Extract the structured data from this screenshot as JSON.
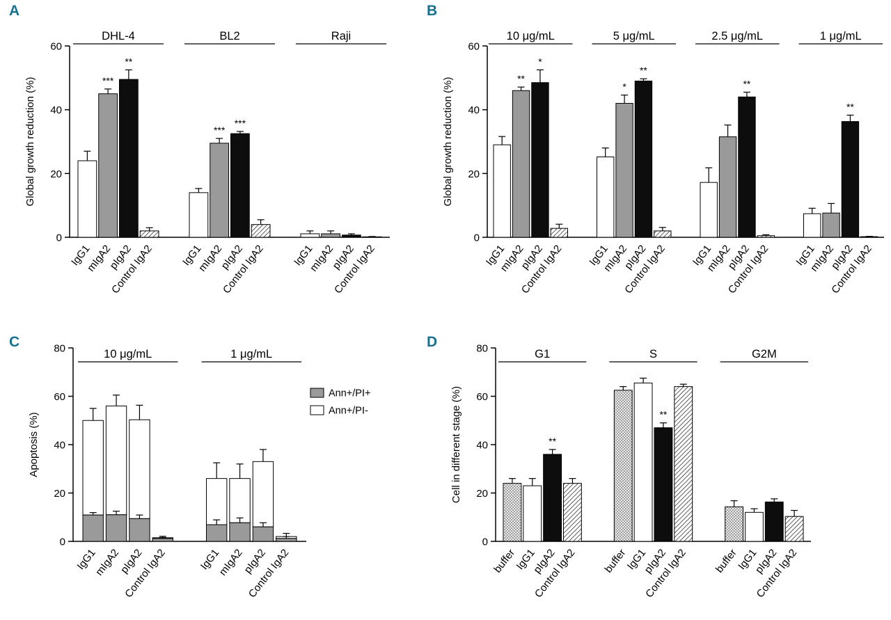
{
  "figure": {
    "background": "#ffffff",
    "panel_label_color": "#19718f",
    "bar_colors": {
      "white": "#ffffff",
      "gray": "#9a9a9a",
      "black": "#0d0d0d",
      "hatch_line": "#1a1a1a",
      "dot_bg": "#ebebeb",
      "dot": "#3a3a3a"
    }
  },
  "chart_data": [
    {
      "id": "A",
      "panel_label": "A",
      "type": "bar",
      "ylabel": "Global growth reduction (%)",
      "ylim": [
        0,
        60
      ],
      "yticks": [
        0,
        20,
        40,
        60
      ],
      "categories": [
        "IgG1",
        "mIgA2",
        "pIgA2",
        "Control IgA2"
      ],
      "bar_styles": [
        "white",
        "gray",
        "black",
        "hatch"
      ],
      "groups": [
        {
          "label": "DHL-4",
          "values": [
            24,
            45,
            49.5,
            2
          ],
          "errors": [
            3,
            1.5,
            3,
            1
          ],
          "sig": [
            "",
            "***",
            "**",
            ""
          ]
        },
        {
          "label": "BL2",
          "values": [
            14,
            29.5,
            32.5,
            4
          ],
          "errors": [
            1.3,
            1.5,
            0.7,
            1.5
          ],
          "sig": [
            "",
            "***",
            "***",
            ""
          ]
        },
        {
          "label": "Raji",
          "values": [
            1.1,
            1.1,
            0.7,
            0.15
          ],
          "errors": [
            0.9,
            0.9,
            0.4,
            0.1
          ],
          "sig": [
            "",
            "",
            "",
            ""
          ]
        }
      ]
    },
    {
      "id": "B",
      "panel_label": "B",
      "type": "bar",
      "ylabel": "Global growth reduction (%)",
      "ylim": [
        0,
        60
      ],
      "yticks": [
        0,
        20,
        40,
        60
      ],
      "categories": [
        "IgG1",
        "mIgA2",
        "pIgA2",
        "Control IgA2"
      ],
      "bar_styles": [
        "white",
        "gray",
        "black",
        "hatch"
      ],
      "groups": [
        {
          "label": "10 μg/mL",
          "values": [
            29,
            46,
            48.5,
            2.8
          ],
          "errors": [
            2.6,
            1.1,
            4,
            1.3
          ],
          "sig": [
            "",
            "**",
            "*",
            ""
          ]
        },
        {
          "label": "5 μg/mL",
          "values": [
            25.2,
            42,
            49,
            2
          ],
          "errors": [
            2.8,
            2.6,
            0.7,
            1.1
          ],
          "sig": [
            "",
            "*",
            "**",
            ""
          ]
        },
        {
          "label": "2.5 μg/mL",
          "values": [
            17.2,
            31.5,
            44,
            0.5
          ],
          "errors": [
            4.6,
            3.7,
            1.5,
            0.3
          ],
          "sig": [
            "",
            "",
            "**",
            ""
          ]
        },
        {
          "label": "1 μg/mL",
          "values": [
            7.4,
            7.6,
            36.3,
            0.2
          ],
          "errors": [
            1.7,
            3,
            2,
            0.1
          ],
          "sig": [
            "",
            "",
            "**",
            ""
          ]
        }
      ]
    },
    {
      "id": "C",
      "panel_label": "C",
      "type": "stacked-bar",
      "ylabel": "Apoptosis (%)",
      "ylim": [
        0,
        80
      ],
      "yticks": [
        0,
        20,
        40,
        60,
        80
      ],
      "categories": [
        "IgG1",
        "mIgA2",
        "pIgA2",
        "Control IgA2"
      ],
      "legend": [
        {
          "label": "Ann+/PI+",
          "style": "gray"
        },
        {
          "label": "Ann+/PI-",
          "style": "white"
        }
      ],
      "series_bottom_style": "gray",
      "series_top_style": "white",
      "groups": [
        {
          "label": "10 μg/mL",
          "bottom": [
            10.9,
            11,
            9.4,
            1.2
          ],
          "bottom_err": [
            1,
            1.5,
            1.5,
            0.4
          ],
          "total": [
            50,
            56,
            50.3,
            1.5
          ],
          "total_err": [
            5,
            4.5,
            6,
            0.6
          ]
        },
        {
          "label": "1 μg/mL",
          "bottom": [
            6.9,
            7.7,
            6,
            1.2
          ],
          "bottom_err": [
            2,
            2,
            1.7,
            0.8
          ],
          "total": [
            26,
            26,
            33,
            2
          ],
          "total_err": [
            6.5,
            6,
            5,
            1.3
          ]
        }
      ]
    },
    {
      "id": "D",
      "panel_label": "D",
      "type": "bar",
      "ylabel": "Cell in different stage (%)",
      "ylim": [
        0,
        80
      ],
      "yticks": [
        0,
        20,
        40,
        60,
        80
      ],
      "categories": [
        "buffer",
        "IgG1",
        "pIgA2",
        "Control IgA2"
      ],
      "bar_styles": [
        "dotted",
        "white",
        "black",
        "hatch"
      ],
      "groups": [
        {
          "label": "G1",
          "values": [
            24,
            23,
            36,
            24
          ],
          "errors": [
            2,
            3,
            2,
            2
          ],
          "sig": [
            "",
            "",
            "**",
            ""
          ]
        },
        {
          "label": "S",
          "values": [
            62.5,
            65.5,
            47,
            64
          ],
          "errors": [
            1.5,
            2,
            2,
            1
          ],
          "sig": [
            "",
            "",
            "**",
            ""
          ]
        },
        {
          "label": "G2M",
          "values": [
            14.3,
            12,
            16.3,
            10.3
          ],
          "errors": [
            2.5,
            1.5,
            1.3,
            2.5
          ],
          "sig": [
            "",
            "",
            "",
            ""
          ]
        }
      ]
    }
  ]
}
